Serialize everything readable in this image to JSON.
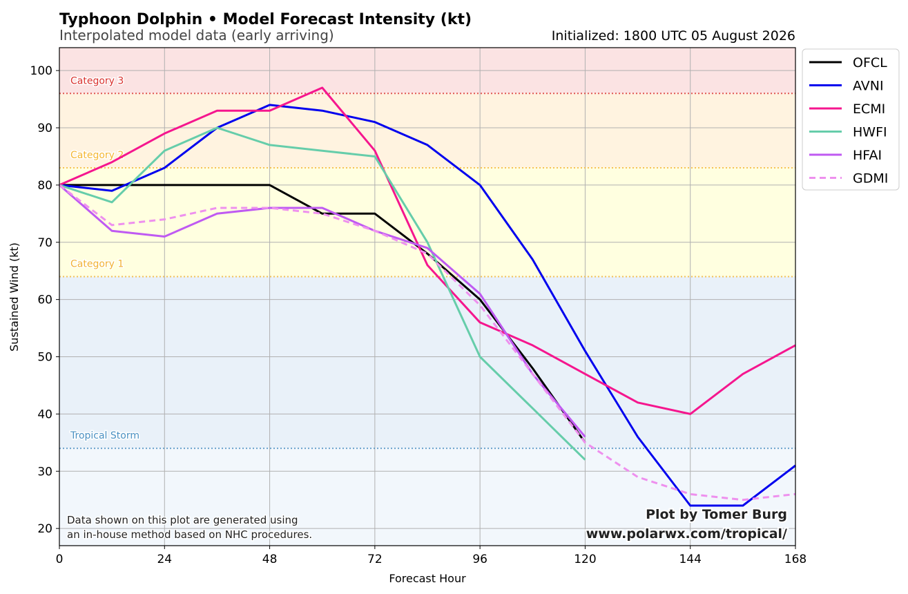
{
  "header": {
    "title": "Typhoon Dolphin • Model Forecast Intensity (kt)",
    "subtitle": "Interpolated model data (early arriving)",
    "initialized": "Initialized: 1800 UTC 05 August 2026"
  },
  "footer": {
    "note_line1": "Data shown on this plot are generated using",
    "note_line2": "an in-house method based on NHC procedures.",
    "credit_line1": "Plot by Tomer Burg",
    "credit_line2": "www.polarwx.com/tropical/"
  },
  "chart_data": {
    "type": "line",
    "xlabel": "Forecast Hour",
    "ylabel": "Sustained Wind (kt)",
    "xlim": [
      0,
      168
    ],
    "ylim": [
      17,
      104
    ],
    "xticks": [
      0,
      24,
      48,
      72,
      96,
      120,
      144,
      168
    ],
    "yticks": [
      20,
      30,
      40,
      50,
      60,
      70,
      80,
      90,
      100
    ],
    "grid": true,
    "legend_position": "outside-top-right",
    "bands": [
      {
        "from": 17,
        "to": 34,
        "color": "#f2f7fc"
      },
      {
        "from": 34,
        "to": 64,
        "color": "#e9f1f9"
      },
      {
        "from": 64,
        "to": 83,
        "color": "#ffffe0"
      },
      {
        "from": 83,
        "to": 96,
        "color": "#fff3e0"
      },
      {
        "from": 96,
        "to": 104,
        "color": "#fbe3e3"
      }
    ],
    "thresholds": [
      {
        "value": 34,
        "label": "Tropical Storm",
        "color": "#4a90c2"
      },
      {
        "value": 64,
        "label": "Category 1",
        "color": "#f2b233"
      },
      {
        "value": 83,
        "label": "Category 2",
        "color": "#f5b731"
      },
      {
        "value": 96,
        "label": "Category 3",
        "color": "#d9302c"
      }
    ],
    "series": [
      {
        "name": "OFCL",
        "color": "#000000",
        "dashed": false,
        "x": [
          0,
          12,
          24,
          36,
          48,
          60,
          72,
          84,
          96,
          108,
          120
        ],
        "y": [
          80,
          80,
          80,
          80,
          80,
          75,
          75,
          68,
          60,
          48,
          35
        ]
      },
      {
        "name": "AVNI",
        "color": "#0000ee",
        "dashed": false,
        "x": [
          0,
          12,
          24,
          36,
          48,
          60,
          72,
          84,
          96,
          108,
          120,
          132,
          144,
          156,
          168
        ],
        "y": [
          80,
          79,
          83,
          90,
          94,
          93,
          91,
          87,
          80,
          67,
          51,
          36,
          24,
          24,
          31
        ]
      },
      {
        "name": "ECMI",
        "color": "#f5168e",
        "dashed": false,
        "x": [
          0,
          12,
          24,
          36,
          48,
          60,
          72,
          84,
          96,
          108,
          120,
          132,
          144,
          156,
          168
        ],
        "y": [
          80,
          84,
          89,
          93,
          93,
          97,
          86,
          66,
          56,
          52,
          47,
          42,
          40,
          47,
          52
        ]
      },
      {
        "name": "HWFI",
        "color": "#66cdaa",
        "dashed": false,
        "x": [
          0,
          12,
          24,
          36,
          48,
          60,
          72,
          84,
          96,
          108,
          120
        ],
        "y": [
          80,
          77,
          86,
          90,
          87,
          86,
          85,
          70,
          50,
          41,
          32
        ]
      },
      {
        "name": "HFAI",
        "color": "#bf5af2",
        "dashed": false,
        "x": [
          0,
          12,
          24,
          36,
          48,
          60,
          72,
          84,
          96,
          108,
          120
        ],
        "y": [
          80,
          72,
          71,
          75,
          76,
          76,
          72,
          69,
          61,
          47,
          36
        ]
      },
      {
        "name": "GDMI",
        "color": "#ee90ee",
        "dashed": true,
        "x": [
          0,
          12,
          24,
          36,
          48,
          60,
          72,
          84,
          96,
          108,
          120,
          132,
          144,
          156,
          168
        ],
        "y": [
          80,
          73,
          74,
          76,
          76,
          75,
          72,
          68,
          59,
          47,
          35,
          29,
          26,
          25,
          26
        ]
      }
    ]
  }
}
